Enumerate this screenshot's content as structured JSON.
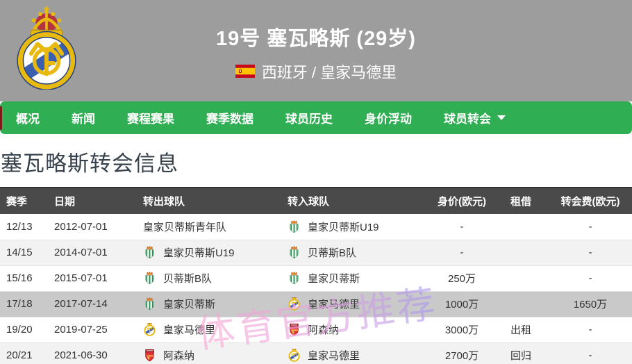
{
  "header": {
    "title": "19号 塞瓦略斯 (29岁)",
    "subtitle": "西班牙 / 皇家马德里",
    "flag_icon": "spain-flag-icon",
    "crest_icon": "real-madrid-crest-icon"
  },
  "nav": {
    "items": [
      {
        "label": "概况",
        "has_dropdown": false
      },
      {
        "label": "新闻",
        "has_dropdown": false
      },
      {
        "label": "赛程赛果",
        "has_dropdown": false
      },
      {
        "label": "赛季数据",
        "has_dropdown": false
      },
      {
        "label": "球员历史",
        "has_dropdown": false
      },
      {
        "label": "身价浮动",
        "has_dropdown": false
      },
      {
        "label": "球员转会",
        "has_dropdown": true
      }
    ]
  },
  "section": {
    "title": "塞瓦略斯转会信息"
  },
  "table": {
    "columns": [
      "赛季",
      "日期",
      "转出球队",
      "转入球队",
      "身价(欧元)",
      "租借",
      "转会费(欧元)"
    ],
    "rows": [
      {
        "season": "12/13",
        "date": "2012-07-01",
        "out_team": {
          "name": "皇家贝蒂斯青年队",
          "icon": null
        },
        "in_team": {
          "name": "皇家贝蒂斯U19",
          "icon": "betis-crest-icon"
        },
        "value": "-",
        "loan": "",
        "fee": "-",
        "highlight": false,
        "stripe": false
      },
      {
        "season": "14/15",
        "date": "2014-07-01",
        "out_team": {
          "name": "皇家贝蒂斯U19",
          "icon": "betis-crest-icon"
        },
        "in_team": {
          "name": "贝蒂斯B队",
          "icon": "betis-crest-icon"
        },
        "value": "-",
        "loan": "",
        "fee": "-",
        "highlight": false,
        "stripe": true
      },
      {
        "season": "15/16",
        "date": "2015-07-01",
        "out_team": {
          "name": "贝蒂斯B队",
          "icon": "betis-crest-icon"
        },
        "in_team": {
          "name": "皇家贝蒂斯",
          "icon": "betis-crest-icon"
        },
        "value": "250万",
        "loan": "",
        "fee": "-",
        "highlight": false,
        "stripe": false
      },
      {
        "season": "17/18",
        "date": "2017-07-14",
        "out_team": {
          "name": "皇家贝蒂斯",
          "icon": "betis-crest-icon"
        },
        "in_team": {
          "name": "皇家马德里",
          "icon": "real-madrid-crest-icon"
        },
        "value": "1000万",
        "loan": "",
        "fee": "1650万",
        "highlight": true,
        "stripe": false
      },
      {
        "season": "19/20",
        "date": "2019-07-25",
        "out_team": {
          "name": "皇家马德里",
          "icon": "real-madrid-crest-icon"
        },
        "in_team": {
          "name": "阿森纳",
          "icon": "arsenal-crest-icon"
        },
        "value": "3000万",
        "loan": "出租",
        "fee": "-",
        "highlight": false,
        "stripe": false
      },
      {
        "season": "20/21",
        "date": "2021-06-30",
        "out_team": {
          "name": "阿森纳",
          "icon": "arsenal-crest-icon"
        },
        "in_team": {
          "name": "皇家马德里",
          "icon": "real-madrid-crest-icon"
        },
        "value": "2700万",
        "loan": "回归",
        "fee": "-",
        "highlight": false,
        "stripe": true
      }
    ]
  },
  "watermark": {
    "text": "体育官方推荐"
  },
  "colors": {
    "header_gray": "#9d9d9d",
    "nav_green": "#2fae54",
    "nav_stub_red": "#7e1d18",
    "table_header_bg": "#4a4a4a",
    "row_stripe": "#f2f2f2",
    "row_highlight": "#c9c9c9",
    "watermark_pink": "#fba5d4",
    "watermark_purple": "#a797f0"
  }
}
